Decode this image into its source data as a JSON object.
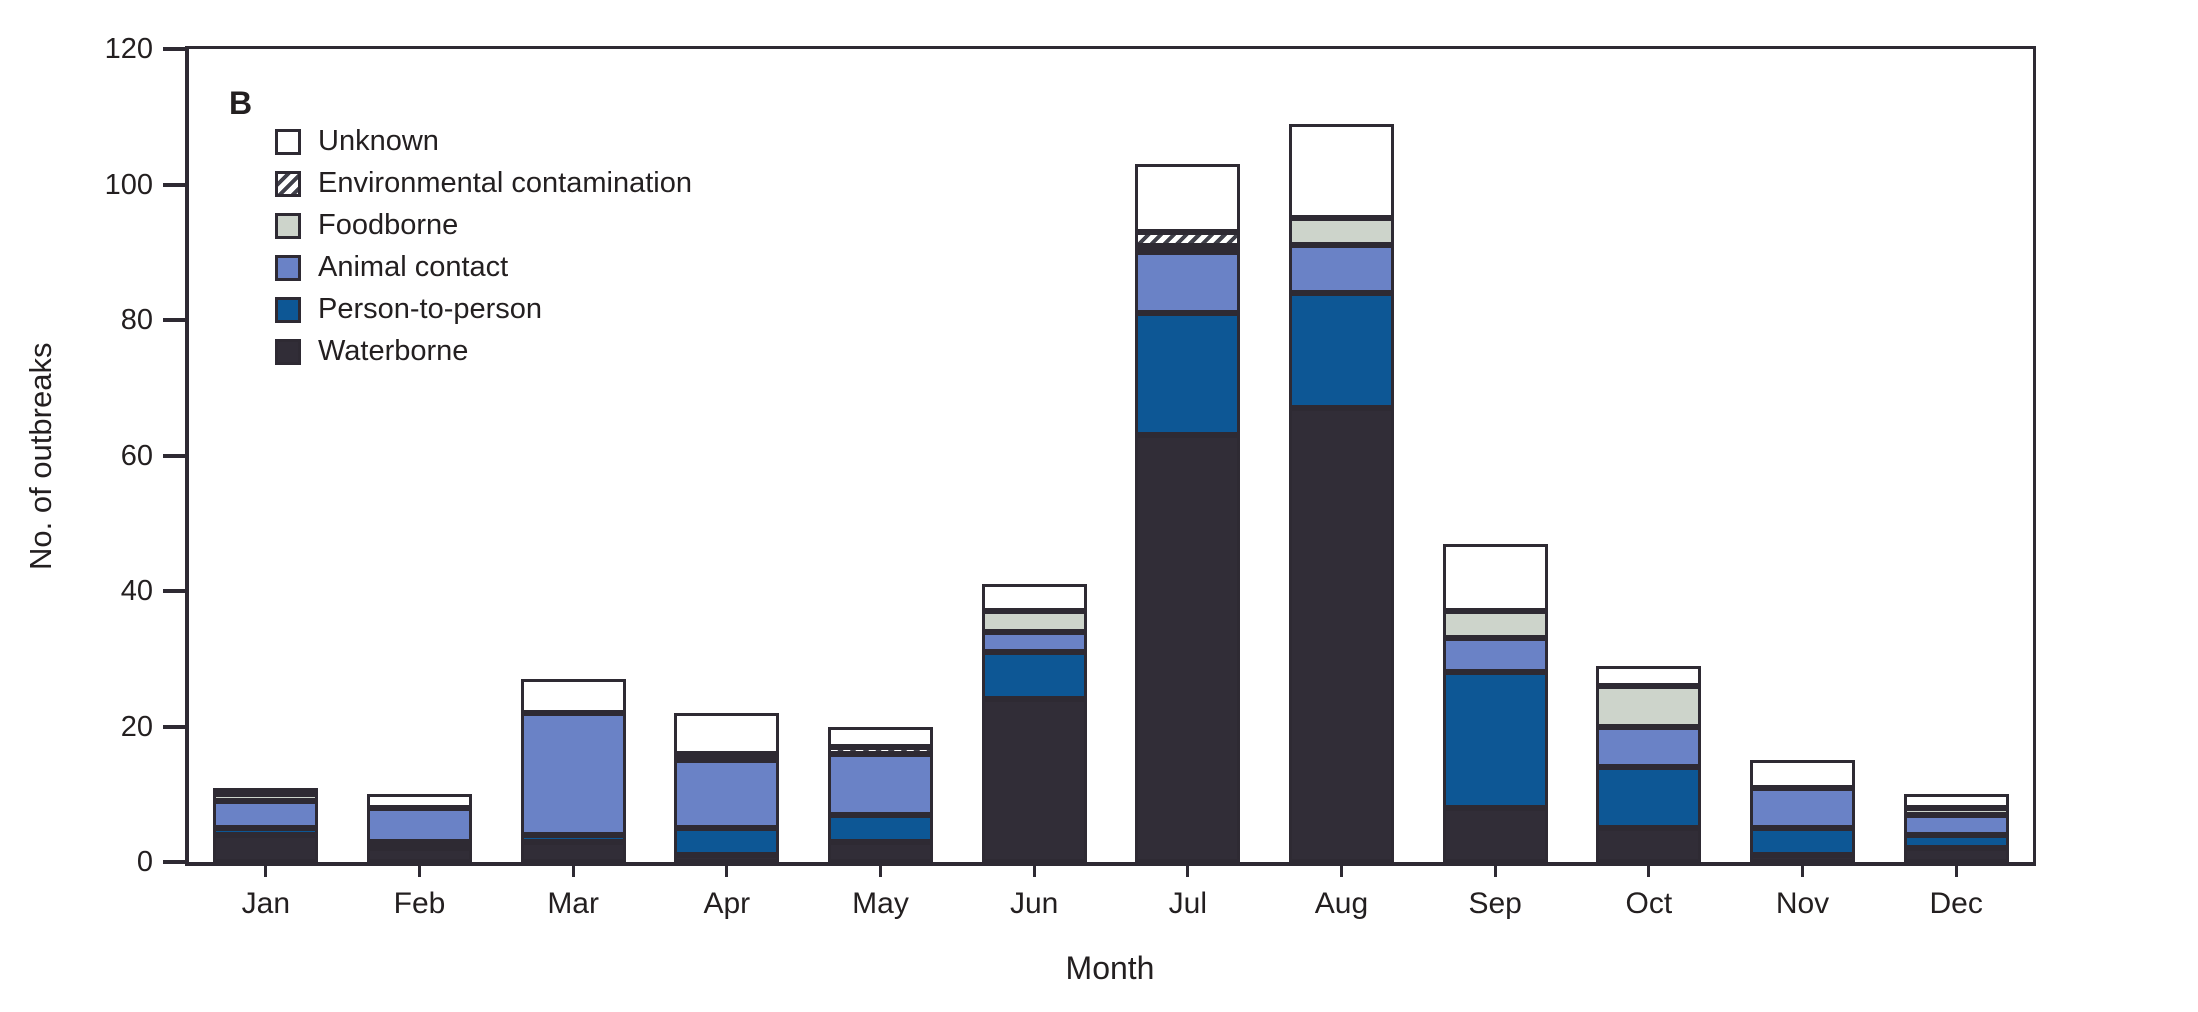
{
  "panel_label": "B",
  "y_axis": {
    "label": "No. of outbreaks",
    "ticks": [
      0,
      20,
      40,
      60,
      80,
      100,
      120
    ],
    "max": 120
  },
  "x_axis": {
    "label": "Month"
  },
  "legend_top_to_bottom": [
    "Unknown",
    "Environmental contamination",
    "Foodborne",
    "Animal contact",
    "Person-to-person",
    "Waterborne"
  ],
  "chart_data": {
    "type": "bar",
    "stacked": true,
    "title": "",
    "xlabel": "Month",
    "ylabel": "No. of outbreaks",
    "ylim": [
      0,
      120
    ],
    "yticks": [
      0,
      20,
      40,
      60,
      80,
      100,
      120
    ],
    "grid": false,
    "legend_position": "upper-left",
    "categories": [
      "Jan",
      "Feb",
      "Mar",
      "Apr",
      "May",
      "Jun",
      "Jul",
      "Aug",
      "Sep",
      "Oct",
      "Nov",
      "Dec"
    ],
    "series_bottom_to_top": [
      {
        "name": "Waterborne",
        "color": "#312d37",
        "hatch": false,
        "values": [
          4,
          2,
          3,
          1,
          3,
          24,
          63,
          67,
          8,
          5,
          1,
          2
        ]
      },
      {
        "name": "Person-to-person",
        "color": "#0d5795",
        "hatch": false,
        "values": [
          1,
          1,
          1,
          4,
          4,
          7,
          18,
          17,
          20,
          9,
          4,
          2
        ]
      },
      {
        "name": "Animal contact",
        "color": "#6a82c6",
        "hatch": false,
        "values": [
          4,
          5,
          18,
          10,
          9,
          3,
          9,
          7,
          5,
          6,
          6,
          3
        ]
      },
      {
        "name": "Foodborne",
        "color": "#cdd4cb",
        "hatch": false,
        "values": [
          1,
          0,
          0,
          0,
          0,
          3,
          1,
          4,
          4,
          6,
          0,
          1
        ]
      },
      {
        "name": "Environmental contamination",
        "color": "#ffffff",
        "hatch": true,
        "values": [
          0,
          0,
          0,
          1,
          1,
          0,
          2,
          0,
          0,
          0,
          0,
          0
        ]
      },
      {
        "name": "Unknown",
        "color": "#ffffff",
        "hatch": false,
        "values": [
          1,
          2,
          5,
          6,
          3,
          4,
          10,
          14,
          10,
          3,
          4,
          2
        ]
      }
    ],
    "totals_by_month": [
      11,
      10,
      27,
      22,
      20,
      41,
      103,
      109,
      47,
      29,
      15,
      10
    ],
    "grand_total": 444
  },
  "style": {
    "bar_border": "#2e2a33",
    "text_color": "#231f20",
    "hatch_stripe": "#40404a",
    "background": "#ffffff"
  }
}
